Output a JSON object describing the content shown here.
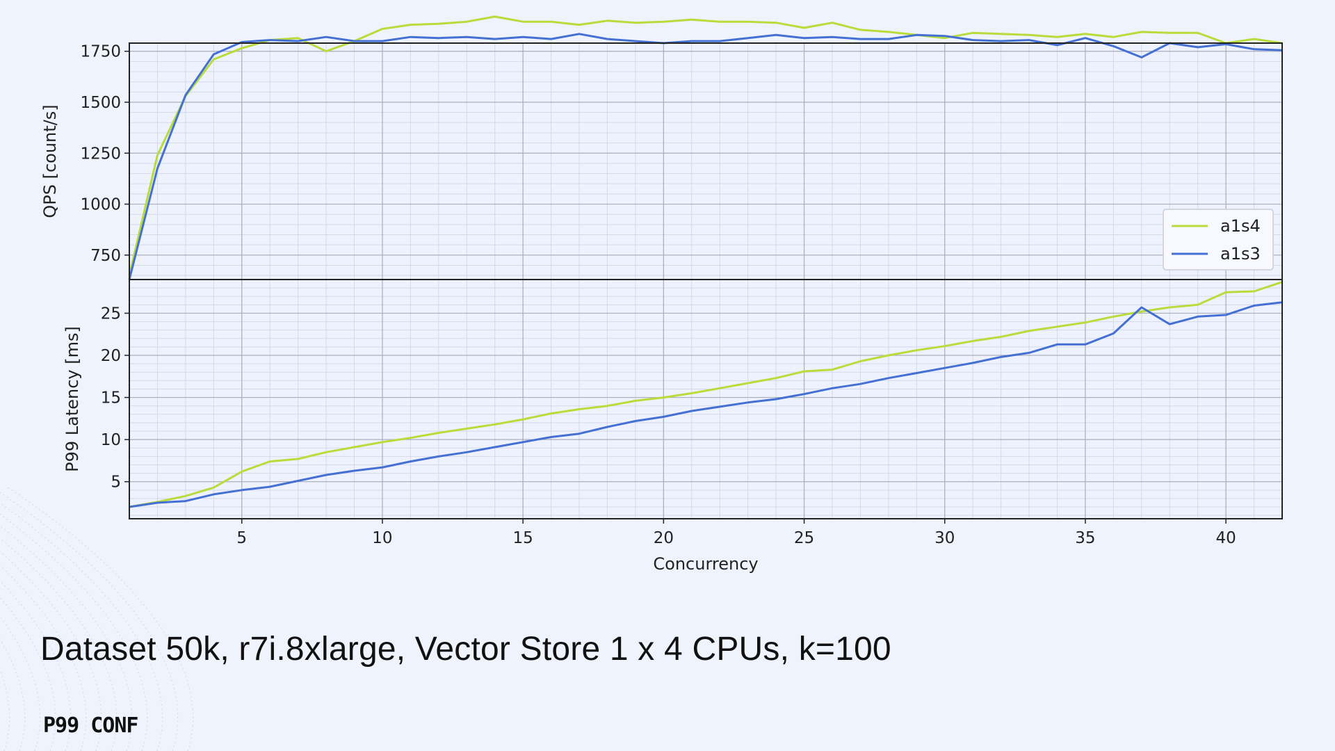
{
  "caption": "Dataset 50k, r7i.8xlarge, Vector Store 1 x 4 CPUs, k=100",
  "logo_text": "P99 CONF",
  "colors": {
    "background": "#eef3fc",
    "plot_bg": "#eef2fd",
    "a1s4": "#b8dc3a",
    "a1s3": "#4470d4"
  },
  "chart_data": [
    {
      "type": "line",
      "title": "",
      "xlabel": "",
      "ylabel": "QPS [count/s]",
      "xlim": [
        1,
        42
      ],
      "ylim": [
        630,
        1790
      ],
      "yticks": [
        750,
        1000,
        1250,
        1500,
        1750
      ],
      "grid": true,
      "legend": "lower-right",
      "x": [
        1,
        2,
        3,
        4,
        5,
        6,
        7,
        8,
        9,
        10,
        11,
        12,
        13,
        14,
        15,
        16,
        17,
        18,
        19,
        20,
        21,
        22,
        23,
        24,
        25,
        26,
        27,
        28,
        29,
        30,
        31,
        32,
        33,
        34,
        35,
        36,
        37,
        38,
        39,
        40,
        41,
        42
      ],
      "series": [
        {
          "name": "a1s4",
          "values": [
            650,
            1240,
            1530,
            1710,
            1765,
            1805,
            1815,
            1750,
            1800,
            1860,
            1880,
            1885,
            1895,
            1920,
            1895,
            1895,
            1880,
            1900,
            1890,
            1895,
            1905,
            1895,
            1895,
            1890,
            1865,
            1890,
            1855,
            1845,
            1830,
            1815,
            1840,
            1835,
            1830,
            1820,
            1835,
            1820,
            1845,
            1840,
            1840,
            1790,
            1810,
            1790
          ]
        },
        {
          "name": "a1s3",
          "values": [
            630,
            1175,
            1535,
            1735,
            1795,
            1805,
            1800,
            1820,
            1800,
            1800,
            1820,
            1815,
            1820,
            1810,
            1820,
            1810,
            1835,
            1810,
            1800,
            1790,
            1800,
            1800,
            1815,
            1830,
            1815,
            1820,
            1810,
            1810,
            1830,
            1825,
            1805,
            1800,
            1805,
            1780,
            1815,
            1775,
            1720,
            1790,
            1770,
            1785,
            1760,
            1755
          ]
        }
      ]
    },
    {
      "type": "line",
      "title": "",
      "xlabel": "Concurrency",
      "ylabel": "P99 Latency [ms]",
      "xlim": [
        1,
        42
      ],
      "ylim": [
        0.6,
        29
      ],
      "xticks": [
        5,
        10,
        15,
        20,
        25,
        30,
        35,
        40
      ],
      "yticks": [
        5,
        10,
        15,
        20,
        25
      ],
      "grid": true,
      "x": [
        1,
        2,
        3,
        4,
        5,
        6,
        7,
        8,
        9,
        10,
        11,
        12,
        13,
        14,
        15,
        16,
        17,
        18,
        19,
        20,
        21,
        22,
        23,
        24,
        25,
        26,
        27,
        28,
        29,
        30,
        31,
        32,
        33,
        34,
        35,
        36,
        37,
        38,
        39,
        40,
        41,
        42
      ],
      "series": [
        {
          "name": "a1s4",
          "values": [
            2.0,
            2.6,
            3.3,
            4.3,
            6.2,
            7.4,
            7.7,
            8.5,
            9.1,
            9.7,
            10.2,
            10.8,
            11.3,
            11.8,
            12.4,
            13.1,
            13.6,
            14.0,
            14.6,
            15.0,
            15.5,
            16.1,
            16.7,
            17.3,
            18.1,
            18.3,
            19.3,
            20.0,
            20.6,
            21.1,
            21.7,
            22.2,
            22.9,
            23.4,
            23.9,
            24.6,
            25.2,
            25.7,
            26.0,
            27.5,
            27.6,
            28.7
          ]
        },
        {
          "name": "a1s3",
          "values": [
            2.0,
            2.5,
            2.7,
            3.5,
            4.0,
            4.4,
            5.1,
            5.8,
            6.3,
            6.7,
            7.4,
            8.0,
            8.5,
            9.1,
            9.7,
            10.3,
            10.7,
            11.5,
            12.2,
            12.7,
            13.4,
            13.9,
            14.4,
            14.8,
            15.4,
            16.1,
            16.6,
            17.3,
            17.9,
            18.5,
            19.1,
            19.8,
            20.3,
            21.3,
            21.3,
            22.6,
            25.7,
            23.7,
            24.6,
            24.8,
            25.9,
            26.3
          ]
        }
      ]
    }
  ]
}
